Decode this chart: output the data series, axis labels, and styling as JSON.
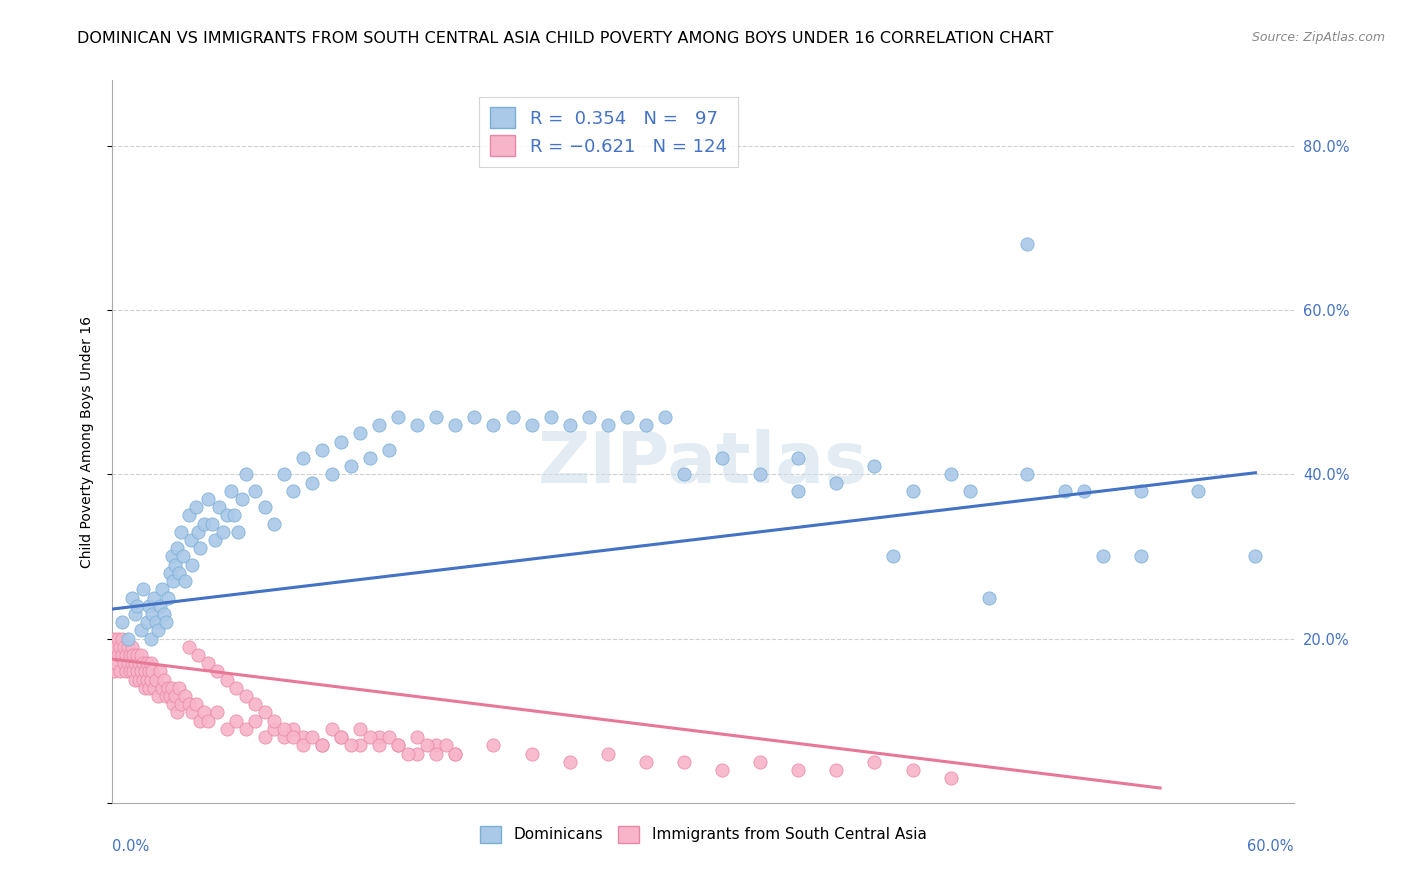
{
  "title": "DOMINICAN VS IMMIGRANTS FROM SOUTH CENTRAL ASIA CHILD POVERTY AMONG BOYS UNDER 16 CORRELATION CHART",
  "source": "Source: ZipAtlas.com",
  "ylabel": "Child Poverty Among Boys Under 16",
  "yticks": [
    0.0,
    0.2,
    0.4,
    0.6,
    0.8
  ],
  "ytick_labels": [
    "",
    "20.0%",
    "40.0%",
    "60.0%",
    "80.0%"
  ],
  "xlim": [
    0.0,
    0.62
  ],
  "ylim": [
    0.0,
    0.88
  ],
  "watermark": "ZIPatlas",
  "legend_entries": [
    {
      "label": "Dominicans",
      "R": 0.354,
      "N": 97
    },
    {
      "label": "Immigrants from South Central Asia",
      "R": -0.621,
      "N": 124
    }
  ],
  "blue_scatter_x": [
    0.005,
    0.008,
    0.01,
    0.012,
    0.013,
    0.015,
    0.016,
    0.018,
    0.019,
    0.02,
    0.021,
    0.022,
    0.023,
    0.024,
    0.025,
    0.026,
    0.027,
    0.028,
    0.029,
    0.03,
    0.031,
    0.032,
    0.033,
    0.034,
    0.035,
    0.036,
    0.037,
    0.038,
    0.04,
    0.041,
    0.042,
    0.044,
    0.045,
    0.046,
    0.048,
    0.05,
    0.052,
    0.054,
    0.056,
    0.058,
    0.06,
    0.062,
    0.064,
    0.066,
    0.068,
    0.07,
    0.075,
    0.08,
    0.085,
    0.09,
    0.095,
    0.1,
    0.105,
    0.11,
    0.115,
    0.12,
    0.125,
    0.13,
    0.135,
    0.14,
    0.145,
    0.15,
    0.16,
    0.17,
    0.18,
    0.19,
    0.2,
    0.21,
    0.22,
    0.23,
    0.24,
    0.25,
    0.26,
    0.27,
    0.28,
    0.29,
    0.3,
    0.32,
    0.34,
    0.36,
    0.38,
    0.4,
    0.42,
    0.44,
    0.46,
    0.48,
    0.5,
    0.52,
    0.54,
    0.36,
    0.41,
    0.45,
    0.48,
    0.51,
    0.54,
    0.57,
    0.6
  ],
  "blue_scatter_y": [
    0.22,
    0.2,
    0.25,
    0.23,
    0.24,
    0.21,
    0.26,
    0.22,
    0.24,
    0.2,
    0.23,
    0.25,
    0.22,
    0.21,
    0.24,
    0.26,
    0.23,
    0.22,
    0.25,
    0.28,
    0.3,
    0.27,
    0.29,
    0.31,
    0.28,
    0.33,
    0.3,
    0.27,
    0.35,
    0.32,
    0.29,
    0.36,
    0.33,
    0.31,
    0.34,
    0.37,
    0.34,
    0.32,
    0.36,
    0.33,
    0.35,
    0.38,
    0.35,
    0.33,
    0.37,
    0.4,
    0.38,
    0.36,
    0.34,
    0.4,
    0.38,
    0.42,
    0.39,
    0.43,
    0.4,
    0.44,
    0.41,
    0.45,
    0.42,
    0.46,
    0.43,
    0.47,
    0.46,
    0.47,
    0.46,
    0.47,
    0.46,
    0.47,
    0.46,
    0.47,
    0.46,
    0.47,
    0.46,
    0.47,
    0.46,
    0.47,
    0.4,
    0.42,
    0.4,
    0.42,
    0.39,
    0.41,
    0.38,
    0.4,
    0.25,
    0.4,
    0.38,
    0.3,
    0.38,
    0.38,
    0.3,
    0.38,
    0.68,
    0.38,
    0.3,
    0.38,
    0.3
  ],
  "pink_scatter_x": [
    0.0,
    0.001,
    0.001,
    0.002,
    0.002,
    0.003,
    0.003,
    0.004,
    0.004,
    0.005,
    0.005,
    0.006,
    0.006,
    0.007,
    0.007,
    0.008,
    0.008,
    0.009,
    0.009,
    0.01,
    0.01,
    0.011,
    0.011,
    0.012,
    0.012,
    0.013,
    0.013,
    0.014,
    0.014,
    0.015,
    0.015,
    0.016,
    0.016,
    0.017,
    0.017,
    0.018,
    0.018,
    0.019,
    0.019,
    0.02,
    0.02,
    0.021,
    0.022,
    0.023,
    0.024,
    0.025,
    0.026,
    0.027,
    0.028,
    0.029,
    0.03,
    0.031,
    0.032,
    0.033,
    0.034,
    0.035,
    0.036,
    0.038,
    0.04,
    0.042,
    0.044,
    0.046,
    0.048,
    0.05,
    0.055,
    0.06,
    0.065,
    0.07,
    0.075,
    0.08,
    0.085,
    0.09,
    0.095,
    0.1,
    0.11,
    0.12,
    0.13,
    0.14,
    0.15,
    0.16,
    0.17,
    0.18,
    0.2,
    0.22,
    0.24,
    0.26,
    0.28,
    0.3,
    0.32,
    0.34,
    0.36,
    0.38,
    0.4,
    0.42,
    0.44,
    0.04,
    0.045,
    0.05,
    0.055,
    0.06,
    0.065,
    0.07,
    0.075,
    0.08,
    0.085,
    0.09,
    0.095,
    0.1,
    0.105,
    0.11,
    0.115,
    0.12,
    0.125,
    0.13,
    0.135,
    0.14,
    0.145,
    0.15,
    0.155,
    0.16,
    0.165,
    0.17,
    0.175,
    0.18
  ],
  "pink_scatter_y": [
    0.18,
    0.2,
    0.16,
    0.19,
    0.17,
    0.2,
    0.18,
    0.19,
    0.16,
    0.2,
    0.18,
    0.19,
    0.17,
    0.18,
    0.16,
    0.19,
    0.17,
    0.18,
    0.16,
    0.19,
    0.17,
    0.18,
    0.16,
    0.17,
    0.15,
    0.18,
    0.16,
    0.17,
    0.15,
    0.18,
    0.16,
    0.17,
    0.15,
    0.16,
    0.14,
    0.17,
    0.15,
    0.16,
    0.14,
    0.17,
    0.15,
    0.16,
    0.14,
    0.15,
    0.13,
    0.16,
    0.14,
    0.15,
    0.13,
    0.14,
    0.13,
    0.14,
    0.12,
    0.13,
    0.11,
    0.14,
    0.12,
    0.13,
    0.12,
    0.11,
    0.12,
    0.1,
    0.11,
    0.1,
    0.11,
    0.09,
    0.1,
    0.09,
    0.1,
    0.08,
    0.09,
    0.08,
    0.09,
    0.08,
    0.07,
    0.08,
    0.07,
    0.08,
    0.07,
    0.06,
    0.07,
    0.06,
    0.07,
    0.06,
    0.05,
    0.06,
    0.05,
    0.05,
    0.04,
    0.05,
    0.04,
    0.04,
    0.05,
    0.04,
    0.03,
    0.19,
    0.18,
    0.17,
    0.16,
    0.15,
    0.14,
    0.13,
    0.12,
    0.11,
    0.1,
    0.09,
    0.08,
    0.07,
    0.08,
    0.07,
    0.09,
    0.08,
    0.07,
    0.09,
    0.08,
    0.07,
    0.08,
    0.07,
    0.06,
    0.08,
    0.07,
    0.06,
    0.07,
    0.06
  ],
  "blue_line_x0": 0.0,
  "blue_line_y0": 0.236,
  "blue_line_x1": 0.6,
  "blue_line_y1": 0.402,
  "pink_line_x0": 0.0,
  "pink_line_y0": 0.175,
  "pink_line_x1": 0.55,
  "pink_line_y1": 0.018,
  "blue_dot_color": "#aac8e8",
  "blue_edge_color": "#7aafd4",
  "pink_dot_color": "#f8b4c8",
  "pink_edge_color": "#e888a8",
  "blue_line_color": "#4472c4",
  "pink_line_color": "#e87898",
  "grid_color": "#d0d0d0",
  "title_fontsize": 11.5,
  "axis_label_fontsize": 10,
  "tick_fontsize": 10.5
}
